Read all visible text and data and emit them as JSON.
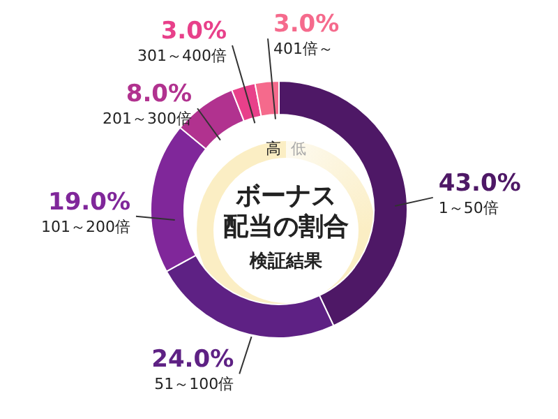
{
  "chart_data": {
    "type": "donut",
    "title": "ボーナス配当の割合",
    "subtitle": "検証結果",
    "categories": [
      "1～50倍",
      "51～100倍",
      "101～200倍",
      "201～300倍",
      "301～400倍",
      "401倍～"
    ],
    "values": [
      43.0,
      24.0,
      19.0,
      8.0,
      3.0,
      3.0
    ],
    "colors": [
      "#4e1866",
      "#5e2184",
      "#80279a",
      "#b1328f",
      "#e8408a",
      "#f56a8c"
    ],
    "value_labels": [
      "43.0%",
      "24.0%",
      "19.0%",
      "8.0%",
      "3.0%",
      "3.0%"
    ],
    "annotations": [
      "高",
      "低"
    ]
  }
}
